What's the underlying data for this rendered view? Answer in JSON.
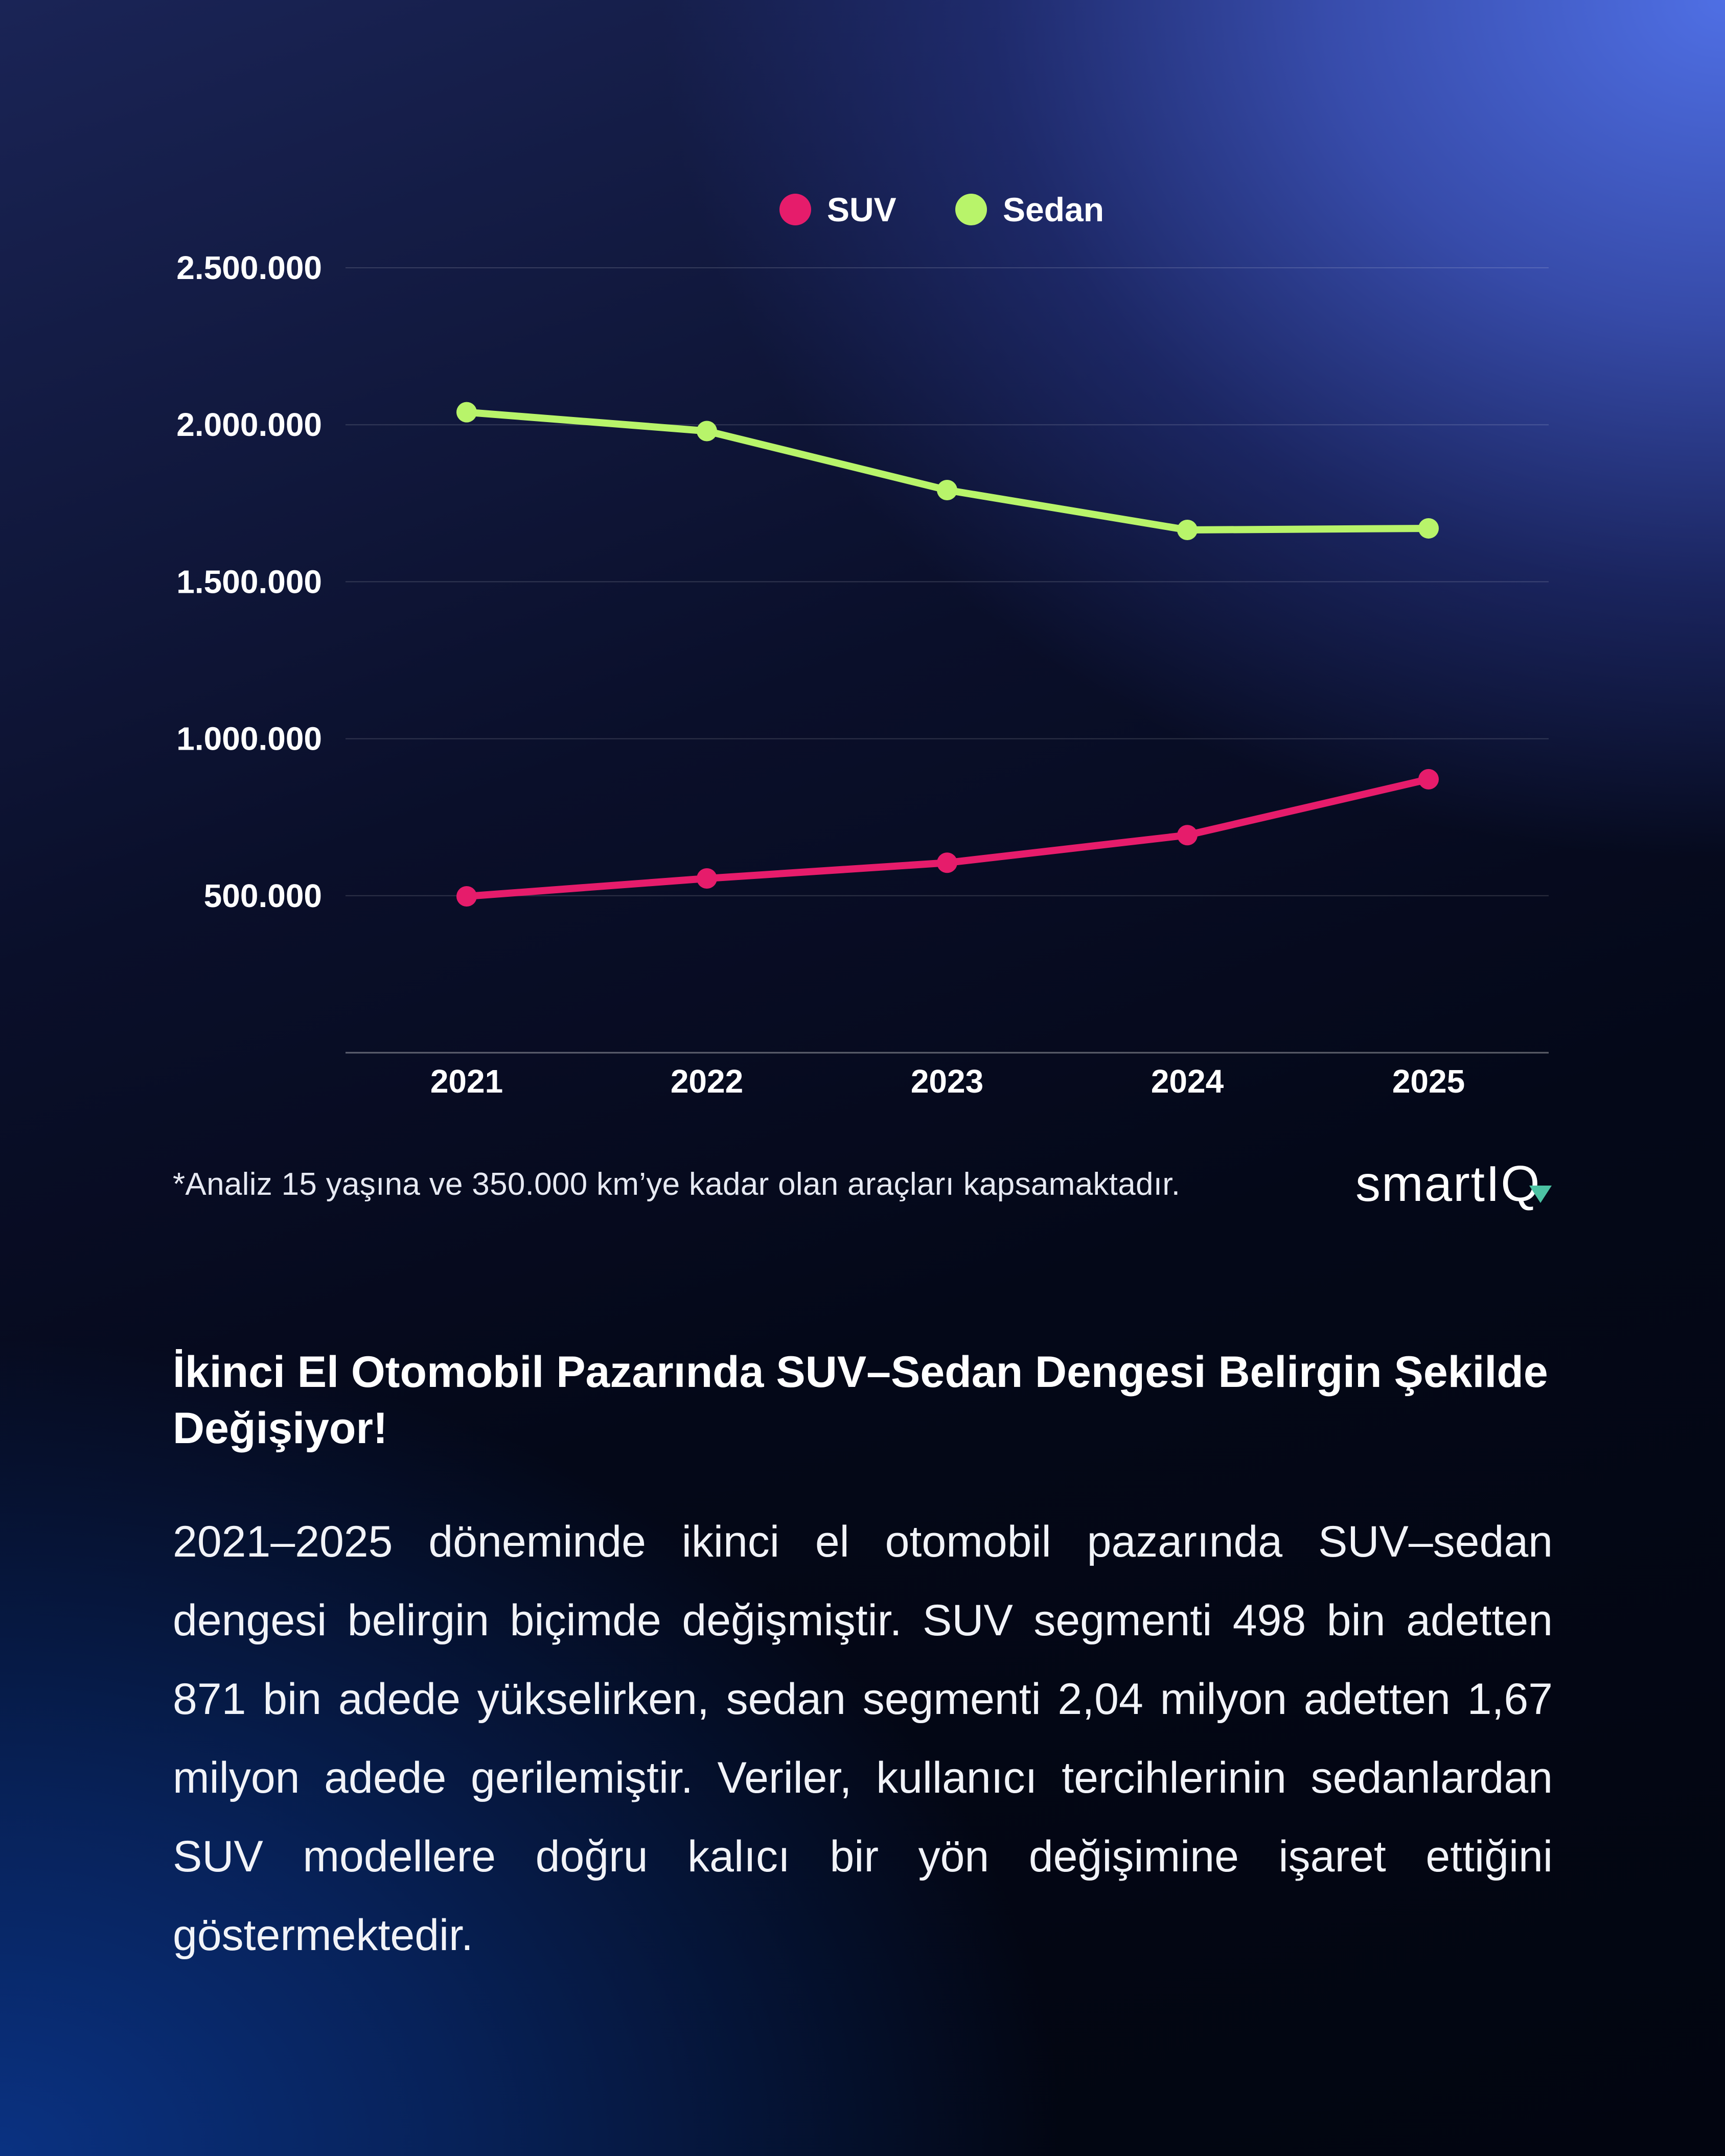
{
  "chart_data": {
    "type": "line",
    "categories": [
      "2021",
      "2022",
      "2023",
      "2024",
      "2025"
    ],
    "series": [
      {
        "name": "SUV",
        "color": "#e61c6b",
        "values": [
          498000,
          555000,
          605000,
          693000,
          871000
        ]
      },
      {
        "name": "Sedan",
        "color": "#b8f46a",
        "values": [
          2040000,
          1980000,
          1792000,
          1665000,
          1670000
        ]
      }
    ],
    "y_ticks": [
      500000,
      1000000,
      1500000,
      2000000,
      2500000
    ],
    "y_tick_labels": [
      "500.000",
      "1.000.000",
      "1.500.000",
      "2.000.000",
      "2.500.000"
    ],
    "ylim": [
      0,
      2500000
    ],
    "legend_position": "top-center",
    "grid": true,
    "title": "",
    "xlabel": "",
    "ylabel": ""
  },
  "footnote": "*Analiz 15 yaşına ve 350.000 km’ye kadar olan araçları kapsamaktadır.",
  "logo": {
    "text": "smartIQ"
  },
  "headline": "İkinci El Otomobil Pazarında SUV–Sedan Dengesi Belirgin Şekilde Değişiyor!",
  "body": "2021–2025 döneminde ikinci el otomobil pazarında SUV–sedan dengesi belirgin biçimde değişmiştir. SUV segmenti 498 bin adetten 871 bin adede yükselirken, sedan segmenti 2,04 milyon adetten 1,67 milyon adede gerilemiştir. Veriler, kullanıcı tercihlerinin sedanlardan SUV modellere doğru kalıcı bir yön değişimine işaret ettiğini göstermektedir."
}
